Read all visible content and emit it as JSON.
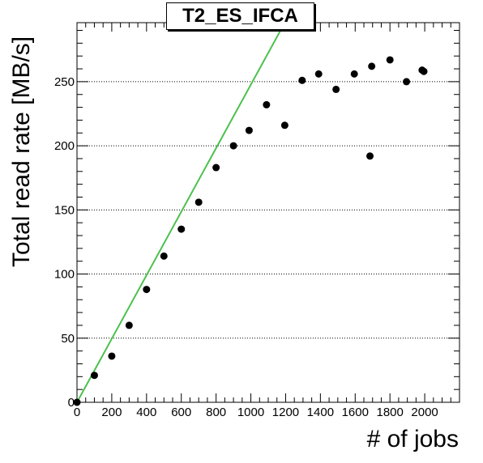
{
  "chart_data": {
    "type": "scatter",
    "title": "T2_ES_IFCA",
    "xlabel": "# of jobs",
    "ylabel": "Total read rate [MB/s]",
    "xlim": [
      0,
      2200
    ],
    "ylim": [
      0,
      296
    ],
    "x_ticks": [
      0,
      200,
      400,
      600,
      800,
      1000,
      1200,
      1400,
      1600,
      1800,
      2000
    ],
    "y_ticks": [
      0,
      50,
      100,
      150,
      200,
      250
    ],
    "grid": "horizontal dotted",
    "marker_color": "#000000",
    "line_color": "#4cc14c",
    "series": [
      {
        "marker": "circle",
        "x": [
          0,
          100,
          200,
          300,
          400,
          500,
          600,
          700,
          800,
          900,
          990,
          1090,
          1195,
          1295,
          1390,
          1490,
          1595,
          1685,
          1695,
          1800,
          1895,
          1985,
          1995
        ],
        "y": [
          0,
          21,
          36,
          60,
          88,
          114,
          135,
          156,
          183,
          200,
          212,
          232,
          216,
          251,
          256,
          244,
          256,
          192,
          262,
          267,
          250,
          259,
          258
        ]
      }
    ],
    "fit_line": {
      "x": [
        0,
        1195
      ],
      "y": [
        0,
        296
      ]
    }
  }
}
